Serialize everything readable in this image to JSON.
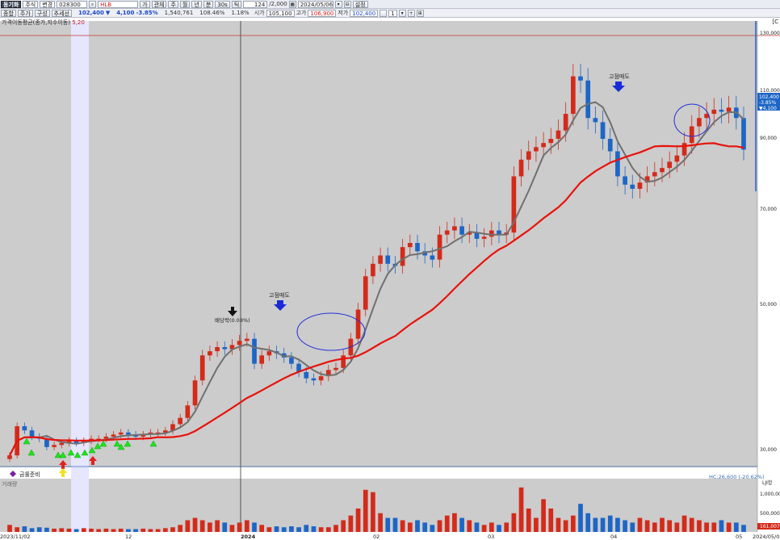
{
  "toolbar": {
    "row1": {
      "menu_label": "동기화",
      "type_label": "주식",
      "change_label": "변경",
      "code": "028300",
      "name_field": "HLB",
      "price_tab": "가",
      "watch_label": "관체",
      "period_labels": [
        "주",
        "월",
        "년",
        "분",
        "30s",
        "틱"
      ],
      "count": "124",
      "scale": "/2,000",
      "date": "2024/05/06",
      "settings_label": "설정"
    },
    "row2": {
      "tabs": [
        "종합",
        "주가",
        "구성",
        "추세선"
      ],
      "price": "102,400",
      "change": "4,100",
      "change_rate": "-3.85%",
      "volume": "1,540,761",
      "vol_ratio": "108.46%",
      "ratio2": "1.18%",
      "open_label": "시가",
      "open": "105,100",
      "high_label": "고가",
      "high": "106,900",
      "low_label": "저가",
      "low": "102,400",
      "step": "1"
    }
  },
  "chart": {
    "legend_title": "가격이동평균(종가,지수이동)",
    "legend_value": "5,20",
    "right_top_label": "[C",
    "price_axis": [
      "130,000",
      "110,000",
      "90,000",
      "70,000",
      "50,000",
      "30,000"
    ],
    "last_price_box": [
      "102,400",
      "-3.85%",
      "▼4,100"
    ],
    "hc_label": "HC:26,600 (-20.62%)",
    "annotations": {
      "sell1": "고점매도",
      "sell2": "고점매도",
      "ex_div": "배당락(0.08%)",
      "gold_ready": "금률준비"
    },
    "volume_axis": [
      "1,000,000",
      "500,000"
    ],
    "volume_last": "161,007",
    "volume_tag": "LJI합",
    "sub_legend": "거래량",
    "date_axis": [
      "2023/11/02",
      "12",
      "2024",
      "02",
      "03",
      "04",
      "05",
      "2024/05/03"
    ],
    "colors": {
      "up": "#d42a1a",
      "down": "#1d66c6",
      "ma5": "#707070",
      "ma20": "#e8120c",
      "panel": "#cccccc",
      "highlight": "#e6e6ff"
    }
  }
}
